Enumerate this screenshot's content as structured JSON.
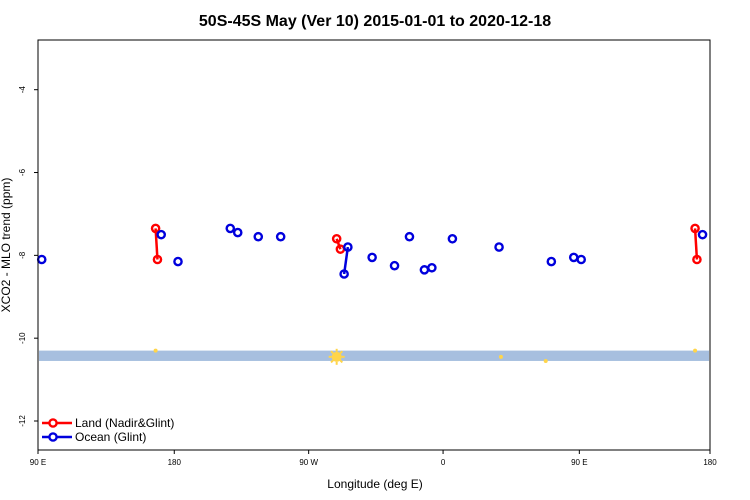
{
  "colors": {
    "land": "#ff0000",
    "ocean": "#0000dd",
    "band": "#a7bfdf",
    "sun": "#ffd54a",
    "frame": "#000000"
  },
  "chart_data": {
    "type": "scatter",
    "title": "50S-45S May (Ver 10)   2015-01-01 to 2020-12-18",
    "xlabel": "Longitude (deg E)",
    "ylabel": "XCO2 - MLO trend (ppm)",
    "xlim": [
      0,
      360
    ],
    "ylim": [
      -12.7,
      -2.8
    ],
    "x_ticks": [
      {
        "value": 0,
        "label": "90 E"
      },
      {
        "value": 73,
        "label": "180"
      },
      {
        "value": 145,
        "label": "90 W"
      },
      {
        "value": 217,
        "label": "0"
      },
      {
        "value": 290,
        "label": "90 E"
      },
      {
        "value": 360,
        "label": "180"
      }
    ],
    "y_ticks": [
      {
        "value": -4,
        "label": "-4"
      },
      {
        "value": -6,
        "label": "-6"
      },
      {
        "value": -8,
        "label": "-8"
      },
      {
        "value": -10,
        "label": "-10"
      },
      {
        "value": -12,
        "label": "-12"
      }
    ],
    "legend": {
      "position": "bottom-left",
      "entries": [
        {
          "name": "Land (Nadir&Glint)",
          "series": "land"
        },
        {
          "name": "Ocean (Glint)",
          "series": "ocean"
        }
      ]
    },
    "band": {
      "y_min": -10.55,
      "y_max": -10.3
    },
    "series": [
      {
        "name": "Land (Nadir&Glint)",
        "key": "land",
        "points": [
          [
            63,
            -7.35
          ],
          [
            64,
            -8.1
          ],
          [
            160,
            -7.6
          ],
          [
            162,
            -7.85
          ],
          [
            352,
            -7.35
          ],
          [
            353,
            -8.1
          ]
        ],
        "segments": [
          [
            [
              63,
              -7.35
            ],
            [
              64,
              -8.1
            ]
          ],
          [
            [
              160,
              -7.6
            ],
            [
              162,
              -7.85
            ]
          ],
          [
            [
              352,
              -7.35
            ],
            [
              353,
              -8.1
            ]
          ]
        ]
      },
      {
        "name": "Ocean (Glint)",
        "key": "ocean",
        "points": [
          [
            2,
            -8.1
          ],
          [
            66,
            -7.5
          ],
          [
            75,
            -8.15
          ],
          [
            103,
            -7.35
          ],
          [
            107,
            -7.45
          ],
          [
            118,
            -7.55
          ],
          [
            130,
            -7.55
          ],
          [
            164,
            -8.45
          ],
          [
            166,
            -7.8
          ],
          [
            179,
            -8.05
          ],
          [
            191,
            -8.25
          ],
          [
            199,
            -7.55
          ],
          [
            207,
            -8.35
          ],
          [
            211,
            -8.3
          ],
          [
            222,
            -7.6
          ],
          [
            247,
            -7.8
          ],
          [
            275,
            -8.15
          ],
          [
            287,
            -8.05
          ],
          [
            291,
            -8.1
          ],
          [
            356,
            -7.5
          ]
        ],
        "segments": [
          [
            [
              164,
              -8.45
            ],
            [
              166,
              -7.8
            ]
          ]
        ]
      }
    ],
    "sun_markers": [
      [
        63,
        -10.3
      ],
      [
        160,
        -10.45
      ],
      [
        248,
        -10.45
      ],
      [
        272,
        -10.55
      ],
      [
        352,
        -10.3
      ]
    ]
  }
}
